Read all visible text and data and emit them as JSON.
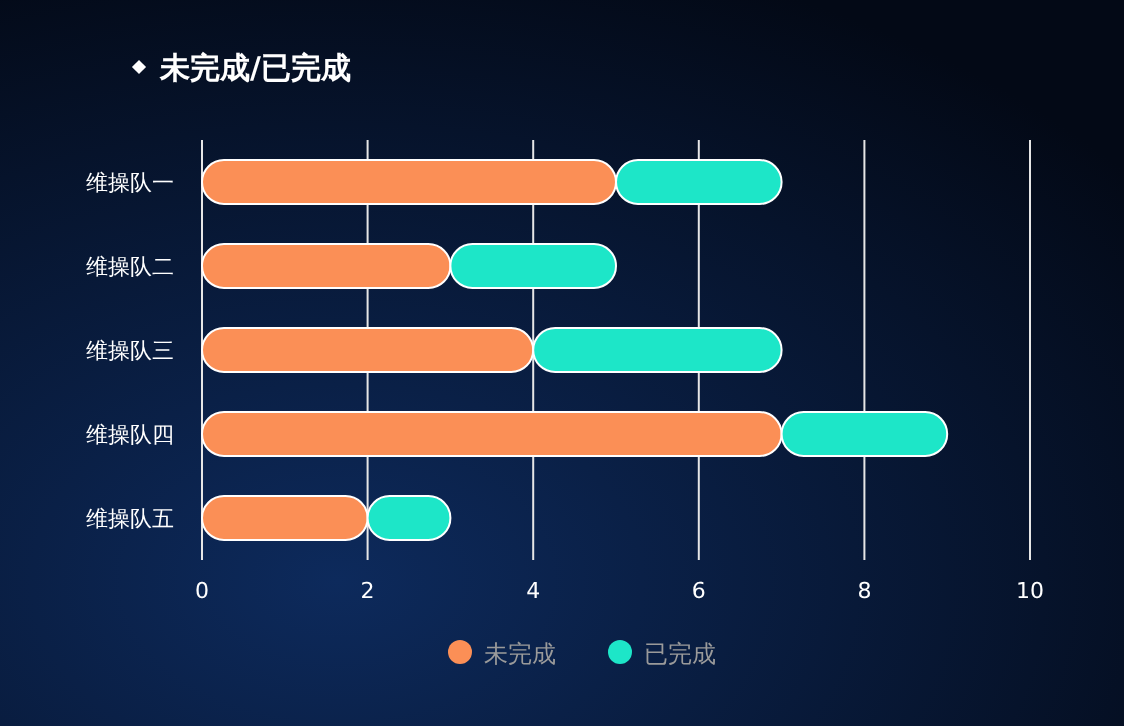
{
  "chart_data": {
    "type": "bar",
    "orientation": "horizontal",
    "stacked": true,
    "title": "未完成/已完成",
    "categories": [
      "维操队一",
      "维操队二",
      "维操队三",
      "维操队四",
      "维操队五"
    ],
    "series": [
      {
        "name": "未完成",
        "color": "#fb8f56",
        "values": [
          5,
          3,
          4,
          7,
          2
        ]
      },
      {
        "name": "已完成",
        "color": "#1de6c8",
        "values": [
          2,
          2,
          3,
          2,
          1
        ]
      }
    ],
    "xlim": [
      0,
      10
    ],
    "xticks": [
      0,
      2,
      4,
      6,
      8,
      10
    ],
    "grid": "x",
    "legend": "bottom"
  }
}
